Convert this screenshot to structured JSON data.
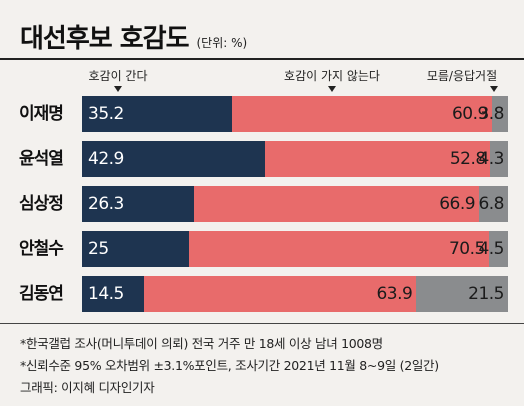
{
  "header": {
    "title": "대선후보 호감도",
    "unit": "(단위: %)"
  },
  "legend": {
    "favorable": "호감이 간다",
    "unfavorable": "호감이 가지 않는다",
    "unknown": "모름/응답거절"
  },
  "colors": {
    "favorable": "#1e3450",
    "unfavorable": "#e86b6b",
    "unknown": "#8a8c8e",
    "background": "#f3f1ee"
  },
  "chart_data": {
    "type": "bar",
    "orientation": "horizontal",
    "stacked": true,
    "title": "대선후보 호감도",
    "unit": "%",
    "categories": [
      "이재명",
      "윤석열",
      "심상정",
      "안철수",
      "김동연"
    ],
    "series": [
      {
        "name": "호감이 간다",
        "values": [
          35.2,
          42.9,
          26.3,
          25,
          14.5
        ]
      },
      {
        "name": "호감이 가지 않는다",
        "values": [
          60.9,
          52.8,
          66.9,
          70.5,
          63.9
        ]
      },
      {
        "name": "모름/응답거절",
        "values": [
          3.8,
          4.3,
          6.8,
          4.5,
          21.5
        ]
      }
    ],
    "labels": [
      [
        "35.2",
        "60.9",
        "3.8"
      ],
      [
        "42.9",
        "52.8",
        "4.3"
      ],
      [
        "26.3",
        "66.9",
        "6.8"
      ],
      [
        "25",
        "70.5",
        "4.5"
      ],
      [
        "14.5",
        "63.9",
        "21.5"
      ]
    ],
    "legend_position": "top"
  },
  "notes": [
    "*한국갤럽 조사(머니투데이 의뢰) 전국 거주 만 18세 이상 남녀 1008명",
    "*신뢰수준 95% 오차범위 ±3.1%포인트, 조사기간 2021년 11월 8~9일 (2일간)",
    "그래픽: 이지혜 디자인기자"
  ]
}
